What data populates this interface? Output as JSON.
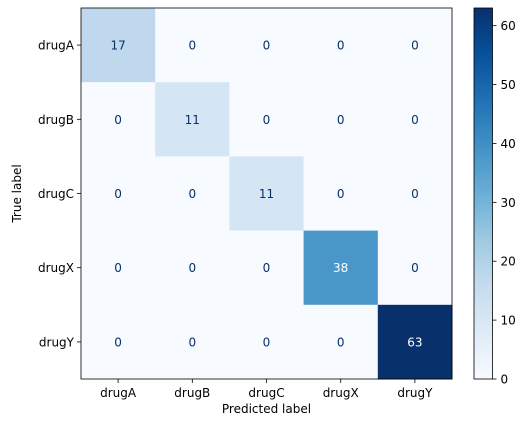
{
  "chart_data": {
    "type": "heatmap",
    "title": "",
    "xlabel": "Predicted label",
    "ylabel": "True label",
    "x_categories": [
      "drugA",
      "drugB",
      "drugC",
      "drugX",
      "drugY"
    ],
    "y_categories": [
      "drugA",
      "drugB",
      "drugC",
      "drugX",
      "drugY"
    ],
    "values": [
      [
        17,
        0,
        0,
        0,
        0
      ],
      [
        0,
        11,
        0,
        0,
        0
      ],
      [
        0,
        0,
        11,
        0,
        0
      ],
      [
        0,
        0,
        0,
        38,
        0
      ],
      [
        0,
        0,
        0,
        0,
        63
      ]
    ],
    "colormap": "Blues",
    "vmin": 0,
    "vmax": 63,
    "colorbar_ticks": [
      0,
      10,
      20,
      30,
      40,
      50,
      60
    ],
    "grid": false,
    "colorbar_position": "right",
    "text_color_light": "#ffffff",
    "text_color_dark": "#08306b"
  }
}
